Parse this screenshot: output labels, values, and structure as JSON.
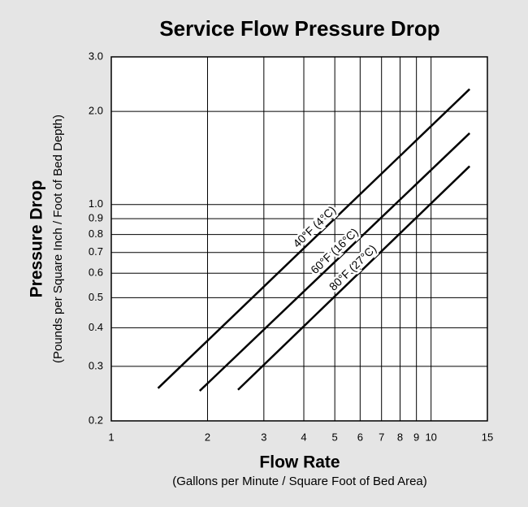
{
  "chart_data": {
    "type": "line",
    "title": "Service Flow Pressure Drop",
    "x_label": "Flow Rate",
    "x_sublabel": "(Gallons per Minute / Square Foot of Bed Area)",
    "y_label": "Pressure Drop",
    "y_sublabel": "(Pounds per Square Inch / Foot of Bed Depth)",
    "xscale": "log",
    "yscale": "log",
    "grid": true,
    "xlim": [
      1,
      15
    ],
    "ylim": [
      0.2,
      3
    ],
    "xticks": [
      1,
      2,
      3,
      4,
      5,
      6,
      7,
      8,
      9,
      10,
      15
    ],
    "yticks": [
      0.2,
      0.3,
      0.4,
      0.5,
      0.6,
      0.7,
      0.8,
      0.9,
      {
        "value": 1,
        "label": "1.0"
      },
      {
        "value": 2,
        "label": "2.0"
      },
      {
        "value": 3,
        "label": "3.0"
      }
    ],
    "series": [
      {
        "name": "40°F (4°C)",
        "color": "#000000",
        "x": [
          1.4,
          13.2
        ],
        "values": [
          0.255,
          2.36
        ]
      },
      {
        "name": "60°F (16°C)",
        "color": "#000000",
        "x": [
          1.89,
          13.2
        ],
        "values": [
          0.25,
          1.7
        ]
      },
      {
        "name": "80°F (27°C)",
        "color": "#000000",
        "x": [
          2.49,
          13.2
        ],
        "values": [
          0.252,
          1.33
        ]
      }
    ]
  }
}
